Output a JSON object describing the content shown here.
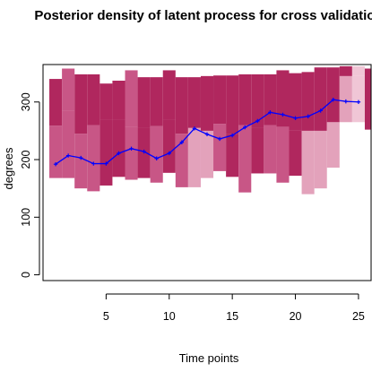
{
  "chart_data": {
    "type": "area",
    "title": "Posterior density of latent process for cross validation",
    "xlabel": "Time points",
    "ylabel": "degrees",
    "xlim": [
      0,
      26
    ],
    "ylim": [
      -10,
      365
    ],
    "xticks": [
      5,
      10,
      15,
      20,
      25
    ],
    "yticks": [
      0,
      100,
      200,
      300
    ],
    "grid": false,
    "colors": {
      "line": "#0000ff",
      "band_dark": "#b0275e",
      "band_mid": "#c85686",
      "band_light": "#e3a2bb",
      "band_pale": "#f0c6d6"
    },
    "series": [
      {
        "type": "line",
        "x": [
          1,
          2,
          3,
          4,
          5,
          6,
          7,
          8,
          9,
          10,
          11,
          12,
          13,
          14,
          15,
          16,
          17,
          18,
          19,
          20,
          21,
          22,
          23,
          24,
          25
        ],
        "values": [
          192,
          207,
          203,
          193,
          193,
          211,
          219,
          214,
          202,
          211,
          230,
          254,
          244,
          236,
          242,
          256,
          267,
          282,
          278,
          272,
          275,
          285,
          304,
          301,
          300
        ]
      }
    ],
    "density_strips": [
      {
        "x": 1,
        "segments": [
          {
            "from": 168,
            "to": 259,
            "level": "mid"
          },
          {
            "from": 259,
            "to": 340,
            "level": "dark"
          }
        ]
      },
      {
        "x": 2,
        "segments": [
          {
            "from": 168,
            "to": 285,
            "level": "mid"
          },
          {
            "from": 285,
            "to": 358,
            "level": "mid"
          }
        ]
      },
      {
        "x": 3,
        "segments": [
          {
            "from": 150,
            "to": 245,
            "level": "mid"
          },
          {
            "from": 245,
            "to": 348,
            "level": "dark"
          }
        ]
      },
      {
        "x": 4,
        "segments": [
          {
            "from": 145,
            "to": 260,
            "level": "mid"
          },
          {
            "from": 260,
            "to": 348,
            "level": "dark"
          }
        ]
      },
      {
        "x": 5,
        "segments": [
          {
            "from": 155,
            "to": 270,
            "level": "dark"
          },
          {
            "from": 270,
            "to": 332,
            "level": "dark"
          }
        ]
      },
      {
        "x": 6,
        "segments": [
          {
            "from": 170,
            "to": 270,
            "level": "dark"
          },
          {
            "from": 270,
            "to": 337,
            "level": "dark"
          }
        ]
      },
      {
        "x": 7,
        "segments": [
          {
            "from": 165,
            "to": 257,
            "level": "mid"
          },
          {
            "from": 257,
            "to": 355,
            "level": "mid"
          }
        ]
      },
      {
        "x": 8,
        "segments": [
          {
            "from": 168,
            "to": 256,
            "level": "dark"
          },
          {
            "from": 256,
            "to": 343,
            "level": "dark"
          }
        ]
      },
      {
        "x": 9,
        "segments": [
          {
            "from": 160,
            "to": 258,
            "level": "mid"
          },
          {
            "from": 258,
            "to": 343,
            "level": "dark"
          }
        ]
      },
      {
        "x": 10,
        "segments": [
          {
            "from": 177,
            "to": 270,
            "level": "dark"
          },
          {
            "from": 270,
            "to": 355,
            "level": "dark"
          }
        ]
      },
      {
        "x": 11,
        "segments": [
          {
            "from": 152,
            "to": 245,
            "level": "mid"
          },
          {
            "from": 245,
            "to": 343,
            "level": "dark"
          }
        ]
      },
      {
        "x": 12,
        "segments": [
          {
            "from": 152,
            "to": 255,
            "level": "light"
          },
          {
            "from": 255,
            "to": 343,
            "level": "dark"
          }
        ]
      },
      {
        "x": 13,
        "segments": [
          {
            "from": 168,
            "to": 250,
            "level": "light"
          },
          {
            "from": 250,
            "to": 345,
            "level": "dark"
          }
        ]
      },
      {
        "x": 14,
        "segments": [
          {
            "from": 180,
            "to": 262,
            "level": "mid"
          },
          {
            "from": 262,
            "to": 346,
            "level": "dark"
          }
        ]
      },
      {
        "x": 15,
        "segments": [
          {
            "from": 170,
            "to": 245,
            "level": "dark"
          },
          {
            "from": 245,
            "to": 346,
            "level": "dark"
          }
        ]
      },
      {
        "x": 16,
        "segments": [
          {
            "from": 143,
            "to": 260,
            "level": "mid"
          },
          {
            "from": 260,
            "to": 348,
            "level": "dark"
          }
        ]
      },
      {
        "x": 17,
        "segments": [
          {
            "from": 176,
            "to": 256,
            "level": "dark"
          },
          {
            "from": 256,
            "to": 348,
            "level": "dark"
          }
        ]
      },
      {
        "x": 18,
        "segments": [
          {
            "from": 176,
            "to": 260,
            "level": "mid"
          },
          {
            "from": 260,
            "to": 348,
            "level": "dark"
          }
        ]
      },
      {
        "x": 19,
        "segments": [
          {
            "from": 160,
            "to": 257,
            "level": "mid"
          },
          {
            "from": 257,
            "to": 355,
            "level": "dark"
          }
        ]
      },
      {
        "x": 20,
        "segments": [
          {
            "from": 172,
            "to": 250,
            "level": "dark"
          },
          {
            "from": 250,
            "to": 350,
            "level": "dark"
          }
        ]
      },
      {
        "x": 21,
        "segments": [
          {
            "from": 140,
            "to": 250,
            "level": "light"
          },
          {
            "from": 250,
            "to": 352,
            "level": "dark"
          }
        ]
      },
      {
        "x": 22,
        "segments": [
          {
            "from": 150,
            "to": 250,
            "level": "light"
          },
          {
            "from": 250,
            "to": 360,
            "level": "dark"
          }
        ]
      },
      {
        "x": 23,
        "segments": [
          {
            "from": 186,
            "to": 265,
            "level": "light"
          },
          {
            "from": 265,
            "to": 360,
            "level": "dark"
          }
        ]
      },
      {
        "x": 24,
        "segments": [
          {
            "from": 265,
            "to": 345,
            "level": "light"
          },
          {
            "from": 345,
            "to": 362,
            "level": "dark"
          }
        ]
      },
      {
        "x": 25,
        "segments": [
          {
            "from": 265,
            "to": 345,
            "level": "pale"
          },
          {
            "from": 345,
            "to": 362,
            "level": "pale"
          }
        ]
      },
      {
        "x": 26,
        "segments": [
          {
            "from": 252,
            "to": 358,
            "level": "dark"
          }
        ]
      }
    ]
  }
}
